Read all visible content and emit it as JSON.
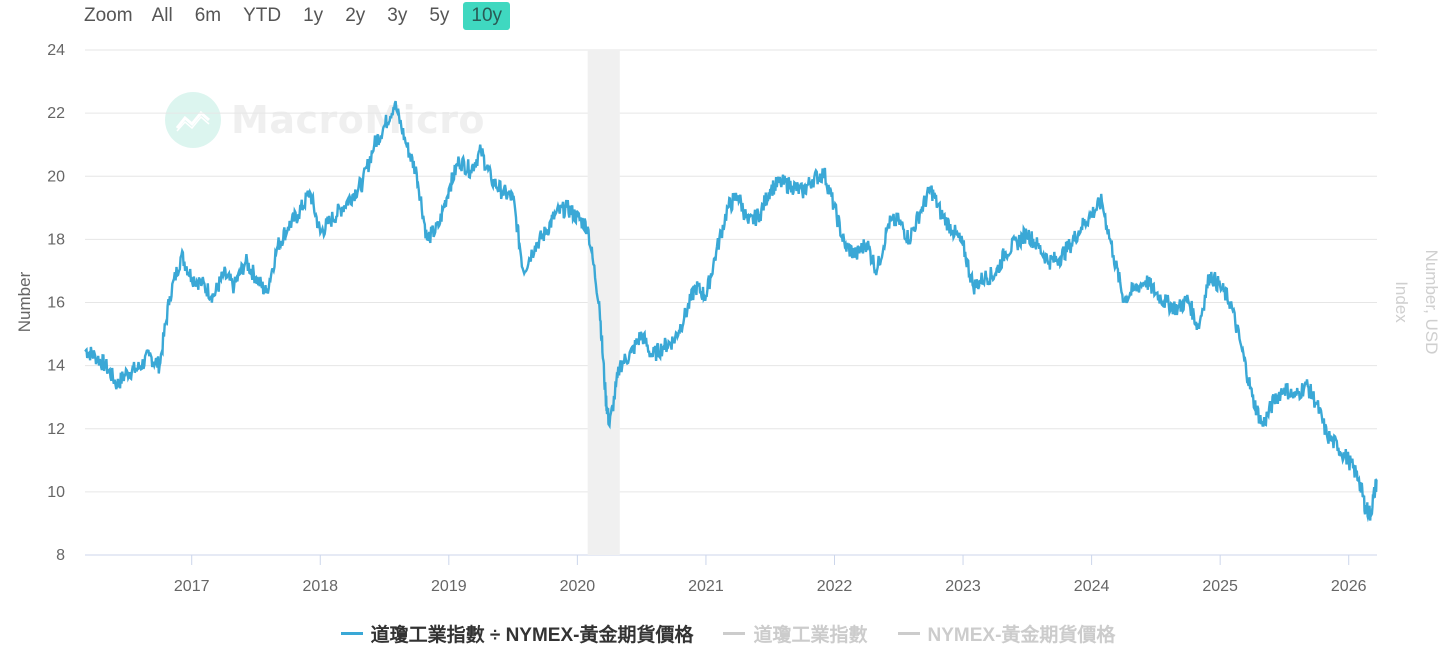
{
  "zoom": {
    "label": "Zoom",
    "options": [
      "All",
      "6m",
      "YTD",
      "1y",
      "2y",
      "3y",
      "5y",
      "10y"
    ],
    "active": "10y",
    "active_color": "#3fd8c0"
  },
  "watermark": {
    "text": "MacroMicro",
    "icon": "chart-logo-icon"
  },
  "chart_data": {
    "type": "line",
    "ylabel": "Number",
    "ylabel_right": "Number, USD",
    "ylabel_right2": "Index",
    "ylim": [
      8,
      24
    ],
    "y_ticks": [
      8,
      10,
      12,
      14,
      16,
      18,
      20,
      22,
      24
    ],
    "x_ticks": [
      "2017",
      "2018",
      "2019",
      "2020",
      "2021",
      "2022",
      "2023",
      "2024",
      "2025",
      "2026"
    ],
    "x_start": 2016.17,
    "x_end": 2026.22,
    "grid": true,
    "shaded_region": {
      "from": 2020.08,
      "to": 2020.33
    },
    "series": [
      {
        "name": "道瓊工業指數 ÷ NYMEX-黃金期貨價格",
        "color": "#3aa8d6",
        "x": [
          2016.17,
          2016.25,
          2016.33,
          2016.42,
          2016.5,
          2016.58,
          2016.67,
          2016.75,
          2016.83,
          2016.92,
          2017.0,
          2017.08,
          2017.17,
          2017.25,
          2017.33,
          2017.42,
          2017.5,
          2017.58,
          2017.67,
          2017.75,
          2017.83,
          2017.92,
          2018.0,
          2018.08,
          2018.17,
          2018.25,
          2018.33,
          2018.42,
          2018.5,
          2018.58,
          2018.67,
          2018.75,
          2018.83,
          2018.92,
          2019.0,
          2019.08,
          2019.17,
          2019.25,
          2019.33,
          2019.42,
          2019.5,
          2019.58,
          2019.67,
          2019.75,
          2019.83,
          2019.92,
          2020.0,
          2020.08,
          2020.17,
          2020.22,
          2020.25,
          2020.33,
          2020.42,
          2020.5,
          2020.58,
          2020.67,
          2020.75,
          2020.83,
          2020.92,
          2021.0,
          2021.08,
          2021.17,
          2021.25,
          2021.33,
          2021.42,
          2021.5,
          2021.58,
          2021.67,
          2021.75,
          2021.83,
          2021.92,
          2022.0,
          2022.08,
          2022.17,
          2022.25,
          2022.33,
          2022.42,
          2022.5,
          2022.58,
          2022.67,
          2022.75,
          2022.83,
          2022.92,
          2023.0,
          2023.08,
          2023.17,
          2023.25,
          2023.33,
          2023.42,
          2023.5,
          2023.58,
          2023.67,
          2023.75,
          2023.83,
          2023.92,
          2024.0,
          2024.08,
          2024.17,
          2024.25,
          2024.33,
          2024.42,
          2024.5,
          2024.58,
          2024.67,
          2024.75,
          2024.83,
          2024.92,
          2025.0,
          2025.08,
          2025.17,
          2025.25,
          2025.33,
          2025.42,
          2025.5,
          2025.58,
          2025.67,
          2025.75,
          2025.83,
          2025.92,
          2026.0,
          2026.08,
          2026.13,
          2026.17,
          2026.22
        ],
        "y": [
          14.5,
          14.3,
          14.0,
          13.4,
          13.8,
          13.9,
          14.3,
          14.0,
          16.2,
          17.5,
          16.8,
          16.6,
          16.2,
          16.9,
          16.5,
          17.3,
          16.8,
          16.3,
          17.8,
          18.4,
          18.8,
          19.5,
          18.2,
          18.6,
          19.0,
          19.4,
          19.8,
          21.0,
          21.6,
          22.3,
          21.0,
          20.1,
          18.0,
          18.4,
          19.6,
          20.5,
          20.2,
          20.8,
          19.9,
          19.5,
          19.3,
          17.0,
          17.8,
          18.2,
          18.8,
          19.0,
          18.7,
          18.4,
          16.0,
          13.0,
          12.1,
          14.0,
          14.4,
          15.0,
          14.3,
          14.6,
          14.8,
          15.5,
          16.5,
          16.2,
          17.6,
          19.0,
          19.4,
          18.5,
          18.8,
          19.6,
          19.8,
          19.7,
          19.5,
          19.9,
          20.1,
          19.0,
          17.8,
          17.5,
          17.9,
          17.0,
          18.5,
          18.6,
          18.0,
          18.9,
          19.6,
          18.8,
          18.3,
          17.8,
          16.5,
          16.8,
          16.9,
          17.6,
          17.9,
          18.2,
          17.8,
          17.3,
          17.4,
          17.8,
          18.4,
          18.8,
          19.2,
          17.5,
          16.1,
          16.4,
          16.7,
          16.3,
          16.0,
          15.8,
          16.1,
          15.2,
          16.9,
          16.5,
          16.0,
          14.5,
          13.0,
          12.1,
          12.9,
          13.3,
          13.0,
          13.4,
          12.8,
          11.8,
          11.4,
          11.0,
          10.4,
          9.5,
          9.3,
          10.4
        ]
      },
      {
        "name": "道瓊工業指數",
        "color": "#cccccc",
        "hidden": true
      },
      {
        "name": "NYMEX-黃金期貨價格",
        "color": "#cccccc",
        "hidden": true
      }
    ]
  }
}
